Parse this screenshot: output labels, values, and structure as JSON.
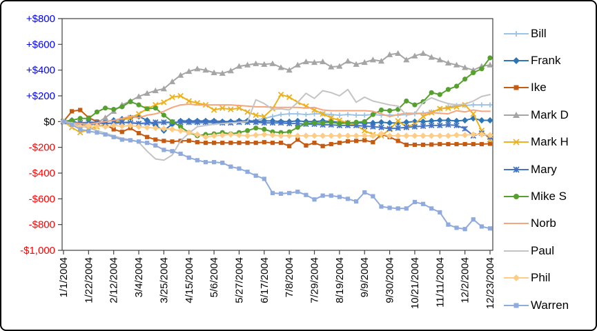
{
  "figure": {
    "background": "#ffffff",
    "border_color": "#000000",
    "axis_line_color": "#404040",
    "positive_label_color": "#0000FF",
    "negative_label_color": "#FF0000",
    "zero_label_color": "#000000"
  },
  "chart_data": {
    "type": "line",
    "title": "",
    "xlabel": "",
    "ylabel": "",
    "grid": false,
    "legend_position": "right",
    "ylim": [
      -1000,
      800
    ],
    "y_ticks": [
      {
        "label": "+$800",
        "value": 800
      },
      {
        "label": "+$600",
        "value": 600
      },
      {
        "label": "+$400",
        "value": 400
      },
      {
        "label": "+$200",
        "value": 200
      },
      {
        "label": "$0",
        "value": 0
      },
      {
        "label": "-$200",
        "value": -200
      },
      {
        "label": "-$400",
        "value": -400
      },
      {
        "label": "-$600",
        "value": -600
      },
      {
        "label": "-$800",
        "value": -800
      },
      {
        "label": "-$1,000",
        "value": -1000
      }
    ],
    "x_tick_labels": [
      "1/1/2004",
      "1/22/2004",
      "2/12/2004",
      "3/4/2004",
      "3/25/2004",
      "4/15/2004",
      "5/6/2004",
      "5/27/2004",
      "6/17/2004",
      "7/8/2004",
      "7/29/2004",
      "8/19/2004",
      "9/9/2004",
      "9/30/2004",
      "10/21/2004",
      "11/11/2004",
      "12/2/2004",
      "12/23/2004"
    ],
    "x_tick_every": 3,
    "x": [
      "1/1",
      "1/8",
      "1/15",
      "1/22",
      "1/29",
      "2/5",
      "2/12",
      "2/19",
      "2/26",
      "3/4",
      "3/11",
      "3/18",
      "3/25",
      "4/1",
      "4/8",
      "4/15",
      "4/22",
      "4/29",
      "5/6",
      "5/13",
      "5/20",
      "5/27",
      "6/3",
      "6/10",
      "6/17",
      "6/24",
      "7/1",
      "7/8",
      "7/15",
      "7/22",
      "7/29",
      "8/5",
      "8/12",
      "8/19",
      "8/26",
      "9/2",
      "9/9",
      "9/16",
      "9/23",
      "9/30",
      "10/7",
      "10/14",
      "10/21",
      "10/28",
      "11/4",
      "11/11",
      "11/18",
      "11/25",
      "12/2",
      "12/9",
      "12/16",
      "12/23"
    ],
    "series": [
      {
        "name": "Bill",
        "color": "#9DC3E6",
        "marker": "plus",
        "values": [
          0,
          -10,
          -15,
          -5,
          0,
          -10,
          -20,
          -10,
          0,
          -15,
          -20,
          -15,
          -10,
          -10,
          -5,
          -10,
          -15,
          -10,
          -10,
          -10,
          -5,
          0,
          5,
          10,
          25,
          40,
          55,
          60,
          60,
          55,
          60,
          60,
          55,
          50,
          55,
          50,
          50,
          55,
          50,
          50,
          50,
          55,
          60,
          65,
          75,
          95,
          115,
          125,
          125,
          130,
          130,
          130
        ]
      },
      {
        "name": "Frank",
        "color": "#2E75B6",
        "marker": "diamond",
        "values": [
          0,
          10,
          -20,
          -30,
          -10,
          0,
          10,
          20,
          30,
          40,
          10,
          -30,
          -70,
          -20,
          5,
          5,
          5,
          5,
          5,
          0,
          0,
          5,
          5,
          0,
          5,
          5,
          0,
          0,
          5,
          0,
          0,
          5,
          0,
          -5,
          -10,
          -10,
          -10,
          -10,
          -5,
          -10,
          -10,
          -5,
          0,
          0,
          5,
          10,
          10,
          5,
          10,
          25,
          10,
          10
        ]
      },
      {
        "name": "Ike",
        "color": "#C55A11",
        "marker": "square",
        "values": [
          0,
          80,
          90,
          30,
          0,
          -20,
          -60,
          -80,
          -50,
          -90,
          -120,
          -140,
          -150,
          -155,
          -150,
          -148,
          -160,
          -165,
          -165,
          -165,
          -165,
          -165,
          -165,
          -165,
          -160,
          -165,
          -165,
          -190,
          -140,
          -185,
          -165,
          -190,
          -175,
          -165,
          -153,
          -150,
          -145,
          -160,
          -100,
          -120,
          -150,
          -180,
          -180,
          -180,
          -178,
          -175,
          -175,
          -175,
          -175,
          -175,
          -175,
          -172
        ]
      },
      {
        "name": "Mark D",
        "color": "#A5A5A5",
        "marker": "triangle",
        "values": [
          0,
          -20,
          -30,
          -20,
          -10,
          30,
          80,
          130,
          160,
          195,
          220,
          240,
          255,
          310,
          360,
          390,
          410,
          400,
          380,
          375,
          395,
          430,
          440,
          450,
          445,
          450,
          420,
          400,
          440,
          465,
          460,
          465,
          425,
          430,
          470,
          445,
          460,
          480,
          470,
          520,
          530,
          480,
          510,
          530,
          500,
          480,
          455,
          440,
          420,
          400,
          430,
          440
        ]
      },
      {
        "name": "Mark H",
        "color": "#EDB120",
        "marker": "x",
        "values": [
          0,
          -45,
          -85,
          -60,
          -40,
          -20,
          -10,
          10,
          30,
          60,
          100,
          130,
          150,
          190,
          200,
          160,
          145,
          130,
          90,
          105,
          95,
          105,
          75,
          50,
          40,
          100,
          210,
          190,
          150,
          120,
          90,
          60,
          30,
          10,
          -10,
          -30,
          -70,
          -100,
          -110,
          -60,
          5,
          -40,
          -20,
          40,
          70,
          100,
          105,
          115,
          130,
          60,
          -70,
          -140
        ]
      },
      {
        "name": "Mary",
        "color": "#4472C4",
        "marker": "asterisk",
        "values": [
          0,
          -5,
          -10,
          -5,
          -10,
          -15,
          -10,
          -5,
          -10,
          -15,
          -10,
          -5,
          -5,
          -5,
          -5,
          -5,
          -5,
          -5,
          -5,
          -10,
          -10,
          -5,
          -5,
          -5,
          -10,
          -10,
          -10,
          -15,
          -15,
          -20,
          -20,
          -25,
          -25,
          -30,
          -30,
          -30,
          -35,
          -40,
          -45,
          -55,
          -50,
          -45,
          -40,
          -35,
          -30,
          -30,
          -25,
          -30,
          -55,
          -110,
          -90,
          -120
        ]
      },
      {
        "name": "Mike S",
        "color": "#55A02E",
        "marker": "circle",
        "values": [
          0,
          10,
          25,
          25,
          75,
          105,
          95,
          115,
          155,
          130,
          100,
          105,
          50,
          0,
          -40,
          -85,
          -110,
          -100,
          -95,
          -85,
          -95,
          -85,
          -70,
          -50,
          -60,
          -80,
          -85,
          -80,
          -45,
          -15,
          -10,
          -10,
          -5,
          -15,
          -10,
          -5,
          0,
          55,
          90,
          85,
          95,
          160,
          130,
          155,
          225,
          210,
          250,
          275,
          330,
          380,
          410,
          495
        ]
      },
      {
        "name": "Norb",
        "color": "#F6A57B",
        "marker": "none",
        "values": [
          0,
          -10,
          -15,
          -20,
          -10,
          0,
          10,
          25,
          40,
          30,
          50,
          60,
          80,
          110,
          130,
          135,
          130,
          130,
          130,
          130,
          130,
          125,
          120,
          115,
          115,
          110,
          110,
          110,
          110,
          105,
          110,
          90,
          85,
          85,
          85,
          85,
          85,
          80,
          60,
          40,
          55,
          65,
          65,
          65,
          70,
          65,
          60,
          85,
          75,
          90,
          80,
          80
        ]
      },
      {
        "name": "Paul",
        "color": "#C3C3C3",
        "marker": "none",
        "values": [
          0,
          -10,
          -30,
          -50,
          -70,
          -90,
          -110,
          -130,
          -140,
          -160,
          -230,
          -290,
          -300,
          -260,
          -150,
          -90,
          -40,
          -30,
          -20,
          -15,
          -10,
          -5,
          0,
          170,
          140,
          95,
          100,
          90,
          150,
          220,
          180,
          240,
          225,
          200,
          250,
          150,
          190,
          160,
          145,
          130,
          120,
          50,
          60,
          150,
          185,
          160,
          140,
          130,
          135,
          160,
          195,
          210
        ]
      },
      {
        "name": "Phil",
        "color": "#FFCC85",
        "marker": "diamond",
        "values": [
          0,
          -25,
          -40,
          -30,
          -35,
          -40,
          -30,
          -35,
          -30,
          -40,
          -45,
          -50,
          -55,
          -60,
          -70,
          -85,
          -100,
          -120,
          -110,
          -105,
          -100,
          -105,
          -110,
          -105,
          -100,
          -105,
          -110,
          -110,
          -110,
          -110,
          -110,
          -110,
          -110,
          -110,
          -110,
          -110,
          -110,
          -110,
          -95,
          -110,
          -110,
          -110,
          -110,
          -110,
          -110,
          -110,
          -110,
          -105,
          -105,
          -100,
          -100,
          -105
        ]
      },
      {
        "name": "Warren",
        "color": "#8FAADC",
        "marker": "square",
        "values": [
          0,
          -25,
          -60,
          -75,
          -85,
          -100,
          -120,
          -140,
          -145,
          -155,
          -165,
          -185,
          -220,
          -230,
          -250,
          -280,
          -300,
          -315,
          -315,
          -320,
          -350,
          -365,
          -390,
          -420,
          -445,
          -555,
          -560,
          -555,
          -545,
          -570,
          -605,
          -575,
          -575,
          -585,
          -600,
          -620,
          -550,
          -580,
          -660,
          -670,
          -675,
          -675,
          -625,
          -640,
          -675,
          -705,
          -800,
          -825,
          -835,
          -760,
          -815,
          -830
        ]
      }
    ]
  }
}
